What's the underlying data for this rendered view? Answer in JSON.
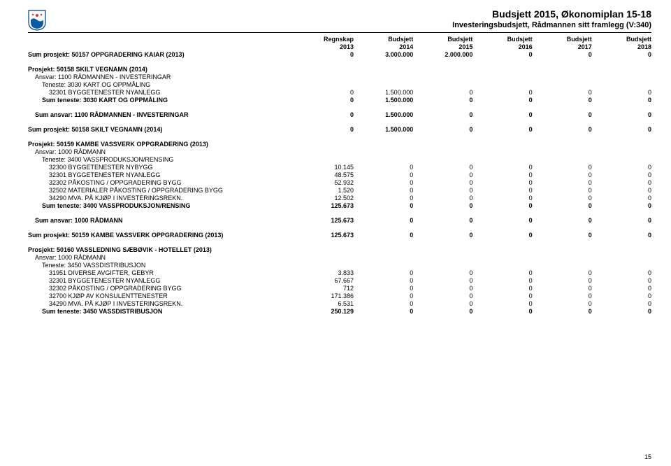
{
  "header": {
    "title1": "Budsjett 2015, Økonomiplan 15-18",
    "title2": "Investeringsbudsjett, Rådmannen sitt framlegg (V:340)",
    "col_headers_top": [
      "Regnskap",
      "Budsjett",
      "Budsjett",
      "Budsjett",
      "Budsjett",
      "Budsjett"
    ],
    "col_headers_year": [
      "2013",
      "2014",
      "2015",
      "2016",
      "2017",
      "2018"
    ]
  },
  "rows": [
    {
      "label": "Sum prosjekt: 50157 OPPGRADERING KAIAR (2013)",
      "v": [
        "0",
        "3.000.000",
        "2.000.000",
        "0",
        "0",
        "0"
      ],
      "bold": true
    },
    {
      "spacer": true
    },
    {
      "label": "Prosjekt: 50158 SKILT VEGNAMN (2014)",
      "bold": true
    },
    {
      "label": "Ansvar: 1100 RÅDMANNEN - INVESTERINGAR",
      "indent": 1
    },
    {
      "label": "Teneste: 3030 KART OG OPPMÅLING",
      "indent": 2
    },
    {
      "label": "32301 BYGGETENESTER NYANLEGG",
      "indent": 3,
      "v": [
        "0",
        "1.500.000",
        "0",
        "0",
        "0",
        "0"
      ]
    },
    {
      "label": "Sum teneste: 3030 KART OG OPPMÅLING",
      "indent": 2,
      "bold": true,
      "v": [
        "0",
        "1.500.000",
        "0",
        "0",
        "0",
        "0"
      ]
    },
    {
      "spacer": true
    },
    {
      "label": "Sum ansvar: 1100 RÅDMANNEN - INVESTERINGAR",
      "indent": 1,
      "bold": true,
      "v": [
        "0",
        "1.500.000",
        "0",
        "0",
        "0",
        "0"
      ]
    },
    {
      "spacer": true
    },
    {
      "label": "Sum prosjekt: 50158 SKILT VEGNAMN (2014)",
      "bold": true,
      "v": [
        "0",
        "1.500.000",
        "0",
        "0",
        "0",
        "0"
      ]
    },
    {
      "spacer": true
    },
    {
      "label": "Prosjekt: 50159 KAMBE VASSVERK OPPGRADERING (2013)",
      "bold": true
    },
    {
      "label": "Ansvar: 1000 RÅDMANN",
      "indent": 1
    },
    {
      "label": "Teneste: 3400 VASSPRODUKSJON/RENSING",
      "indent": 2
    },
    {
      "label": "32300 BYGGETENESTER NYBYGG",
      "indent": 3,
      "v": [
        "10.145",
        "0",
        "0",
        "0",
        "0",
        "0"
      ]
    },
    {
      "label": "32301 BYGGETENESTER NYANLEGG",
      "indent": 3,
      "v": [
        "48.575",
        "0",
        "0",
        "0",
        "0",
        "0"
      ]
    },
    {
      "label": "32302 PÅKOSTING / OPPGRADERING BYGG",
      "indent": 3,
      "v": [
        "52.932",
        "0",
        "0",
        "0",
        "0",
        "0"
      ]
    },
    {
      "label": "32502 MATERIALER PÅKOSTING / OPPGRADERING BYGG",
      "indent": 3,
      "v": [
        "1.520",
        "0",
        "0",
        "0",
        "0",
        "0"
      ]
    },
    {
      "label": "34290 MVA. PÅ KJØP I INVESTERINGSREKN.",
      "indent": 3,
      "v": [
        "12.502",
        "0",
        "0",
        "0",
        "0",
        "0"
      ]
    },
    {
      "label": "Sum teneste: 3400 VASSPRODUKSJON/RENSING",
      "indent": 2,
      "bold": true,
      "v": [
        "125.673",
        "0",
        "0",
        "0",
        "0",
        "0"
      ]
    },
    {
      "spacer": true
    },
    {
      "label": "Sum ansvar: 1000 RÅDMANN",
      "indent": 1,
      "bold": true,
      "v": [
        "125.673",
        "0",
        "0",
        "0",
        "0",
        "0"
      ]
    },
    {
      "spacer": true
    },
    {
      "label": "Sum prosjekt: 50159 KAMBE VASSVERK OPPGRADERING (2013)",
      "bold": true,
      "v": [
        "125.673",
        "0",
        "0",
        "0",
        "0",
        "0"
      ]
    },
    {
      "spacer": true
    },
    {
      "label": "Prosjekt: 50160 VASSLEDNING SÆBØVIK - HOTELLET (2013)",
      "bold": true
    },
    {
      "label": "Ansvar: 1000 RÅDMANN",
      "indent": 1
    },
    {
      "label": "Teneste: 3450 VASSDISTRIBUSJON",
      "indent": 2
    },
    {
      "label": "31951 DIVERSE AVGIFTER, GEBYR",
      "indent": 3,
      "v": [
        "3.833",
        "0",
        "0",
        "0",
        "0",
        "0"
      ]
    },
    {
      "label": "32301 BYGGETENESTER NYANLEGG",
      "indent": 3,
      "v": [
        "67.667",
        "0",
        "0",
        "0",
        "0",
        "0"
      ]
    },
    {
      "label": "32302 PÅKOSTING / OPPGRADERING BYGG",
      "indent": 3,
      "v": [
        "712",
        "0",
        "0",
        "0",
        "0",
        "0"
      ]
    },
    {
      "label": "32700 KJØP AV KONSULENTTENESTER",
      "indent": 3,
      "v": [
        "171.386",
        "0",
        "0",
        "0",
        "0",
        "0"
      ]
    },
    {
      "label": "34290 MVA. PÅ KJØP I INVESTERINGSREKN.",
      "indent": 3,
      "v": [
        "6.531",
        "0",
        "0",
        "0",
        "0",
        "0"
      ]
    },
    {
      "label": "Sum teneste: 3450 VASSDISTRIBUSJON",
      "indent": 2,
      "bold": true,
      "v": [
        "250.129",
        "0",
        "0",
        "0",
        "0",
        "0"
      ]
    }
  ],
  "page_number": "15"
}
